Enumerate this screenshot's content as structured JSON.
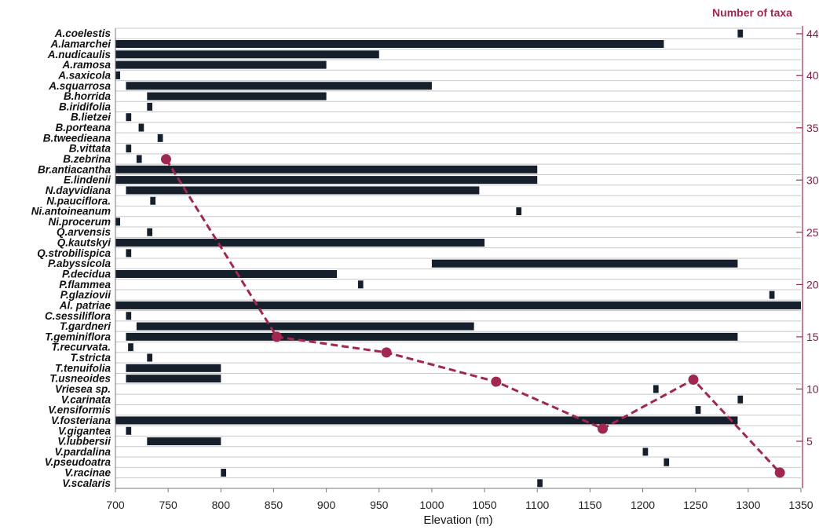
{
  "chart_data": {
    "type": "bar",
    "subtype": "floating-range-bars-with-line-overlay",
    "xlabel": "Elevation (m)",
    "xlim": [
      700,
      1350
    ],
    "x_ticks": [
      "700",
      "750",
      "800",
      "850",
      "900",
      "950",
      "1000",
      "1050",
      "1100",
      "1150",
      "1200",
      "1250",
      "1300",
      "1350"
    ],
    "y2label": "Number of taxa",
    "y2_ticks": [
      "5",
      "10",
      "15",
      "20",
      "25",
      "30",
      "35",
      "40",
      "44"
    ],
    "species": [
      {
        "name": "A.coelestis",
        "range": [
          1290,
          1295
        ]
      },
      {
        "name": "A.lamarchei",
        "range": [
          700,
          1220
        ]
      },
      {
        "name": "A.nudicaulis",
        "range": [
          700,
          950
        ]
      },
      {
        "name": "A.ramosa",
        "range": [
          700,
          900
        ]
      },
      {
        "name": "A.saxicola",
        "range": [
          700,
          704
        ]
      },
      {
        "name": "A.squarrosa",
        "range": [
          710,
          1000
        ]
      },
      {
        "name": "B.horrida",
        "range": [
          730,
          900
        ]
      },
      {
        "name": "B.iridifolia",
        "range": [
          730,
          735
        ]
      },
      {
        "name": "B.lietzei",
        "range": [
          710,
          715
        ]
      },
      {
        "name": "B.porteana",
        "range": [
          722,
          727
        ]
      },
      {
        "name": "B.tweedieana",
        "range": [
          740,
          745
        ]
      },
      {
        "name": "B.vittata",
        "range": [
          710,
          715
        ]
      },
      {
        "name": "B.zebrina",
        "range": [
          720,
          725
        ]
      },
      {
        "name": "Br.antiacantha",
        "range": [
          700,
          1100
        ]
      },
      {
        "name": "E.lindenii",
        "range": [
          700,
          1100
        ]
      },
      {
        "name": "N.dayvidiana",
        "range": [
          710,
          1045
        ]
      },
      {
        "name": "N.pauciflora.",
        "range": [
          733,
          738
        ]
      },
      {
        "name": "Ni.antoineanum",
        "range": [
          1080,
          1085
        ]
      },
      {
        "name": "Ni.procerum",
        "range": [
          700,
          704
        ]
      },
      {
        "name": "Q.arvensis",
        "range": [
          730,
          735
        ]
      },
      {
        "name": "Q.kautskyi",
        "range": [
          700,
          1050
        ]
      },
      {
        "name": "Q.strobilispica",
        "range": [
          710,
          715
        ]
      },
      {
        "name": "P.abyssicola",
        "range": [
          1000,
          1290
        ]
      },
      {
        "name": "P.decidua",
        "range": [
          700,
          910
        ]
      },
      {
        "name": "P.flammea",
        "range": [
          930,
          935
        ]
      },
      {
        "name": "P.glaziovii",
        "range": [
          1320,
          1325
        ]
      },
      {
        "name": "Al. patriae",
        "range": [
          700,
          1350
        ]
      },
      {
        "name": "C.sessiliflora",
        "range": [
          710,
          715
        ]
      },
      {
        "name": "T.gardneri",
        "range": [
          720,
          1040
        ]
      },
      {
        "name": "T.geminiflora",
        "range": [
          710,
          1290
        ]
      },
      {
        "name": "T.recurvata.",
        "range": [
          712,
          717
        ]
      },
      {
        "name": "T.stricta",
        "range": [
          730,
          735
        ]
      },
      {
        "name": "T.tenuifolia",
        "range": [
          710,
          800
        ]
      },
      {
        "name": "T.usneoides",
        "range": [
          710,
          800
        ]
      },
      {
        "name": "Vriesea sp.",
        "range": [
          1210,
          1215
        ]
      },
      {
        "name": "V.carinata",
        "range": [
          1290,
          1295
        ]
      },
      {
        "name": "V.ensiformis",
        "range": [
          1250,
          1255
        ]
      },
      {
        "name": "V.fosteriana",
        "range": [
          700,
          1290
        ]
      },
      {
        "name": "V.gigantea",
        "range": [
          710,
          715
        ]
      },
      {
        "name": "V.lubbersii",
        "range": [
          730,
          800
        ]
      },
      {
        "name": "V.pardalina",
        "range": [
          1200,
          1205
        ]
      },
      {
        "name": "V.pseudoatra",
        "range": [
          1220,
          1225
        ]
      },
      {
        "name": "V.racinae",
        "range": [
          800,
          805
        ]
      },
      {
        "name": "V.scalaris",
        "range": [
          1100,
          1105
        ]
      }
    ],
    "taxa_line": {
      "x": [
        748,
        853,
        957,
        1061,
        1162,
        1248,
        1330
      ],
      "y": [
        32,
        15,
        13.5,
        10.7,
        6.2,
        10.9,
        2
      ]
    },
    "colors": {
      "bars": "#16202c",
      "line": "#a0284f",
      "grid": "#c8c8c8"
    }
  }
}
